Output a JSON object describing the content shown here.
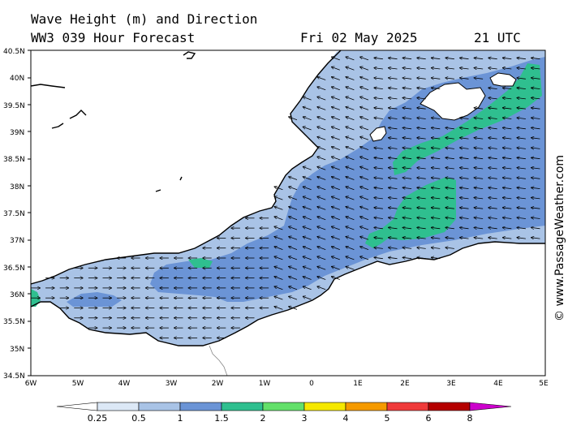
{
  "header": {
    "title": "Wave Height (m) and Direction",
    "model": "WW3 039 Hour Forecast",
    "date": "Fri 02 May 2025",
    "time": "21 UTC"
  },
  "axes": {
    "lat_labels": [
      "40.5N",
      "40N",
      "39.5N",
      "39N",
      "38.5N",
      "38N",
      "37.5N",
      "37N",
      "36.5N",
      "36N",
      "35.5N",
      "35N",
      "34.5N"
    ],
    "lon_labels": [
      "6W",
      "5W",
      "4W",
      "3W",
      "2W",
      "1W",
      "0",
      "1E",
      "2E",
      "3E",
      "4E",
      "5E"
    ]
  },
  "legend": {
    "labels": [
      "0.25",
      "0.5",
      "1",
      "1.5",
      "2",
      "3",
      "4",
      "5",
      "6",
      "8"
    ],
    "colors": [
      "#ffffff",
      "#dce8f6",
      "#a9c3e6",
      "#6b94d6",
      "#2fbf8f",
      "#63e06a",
      "#f5e800",
      "#f59a00",
      "#ef3a3a",
      "#b40000",
      "#cc00cc"
    ]
  },
  "credit": "© www.PassageWeather.com"
}
